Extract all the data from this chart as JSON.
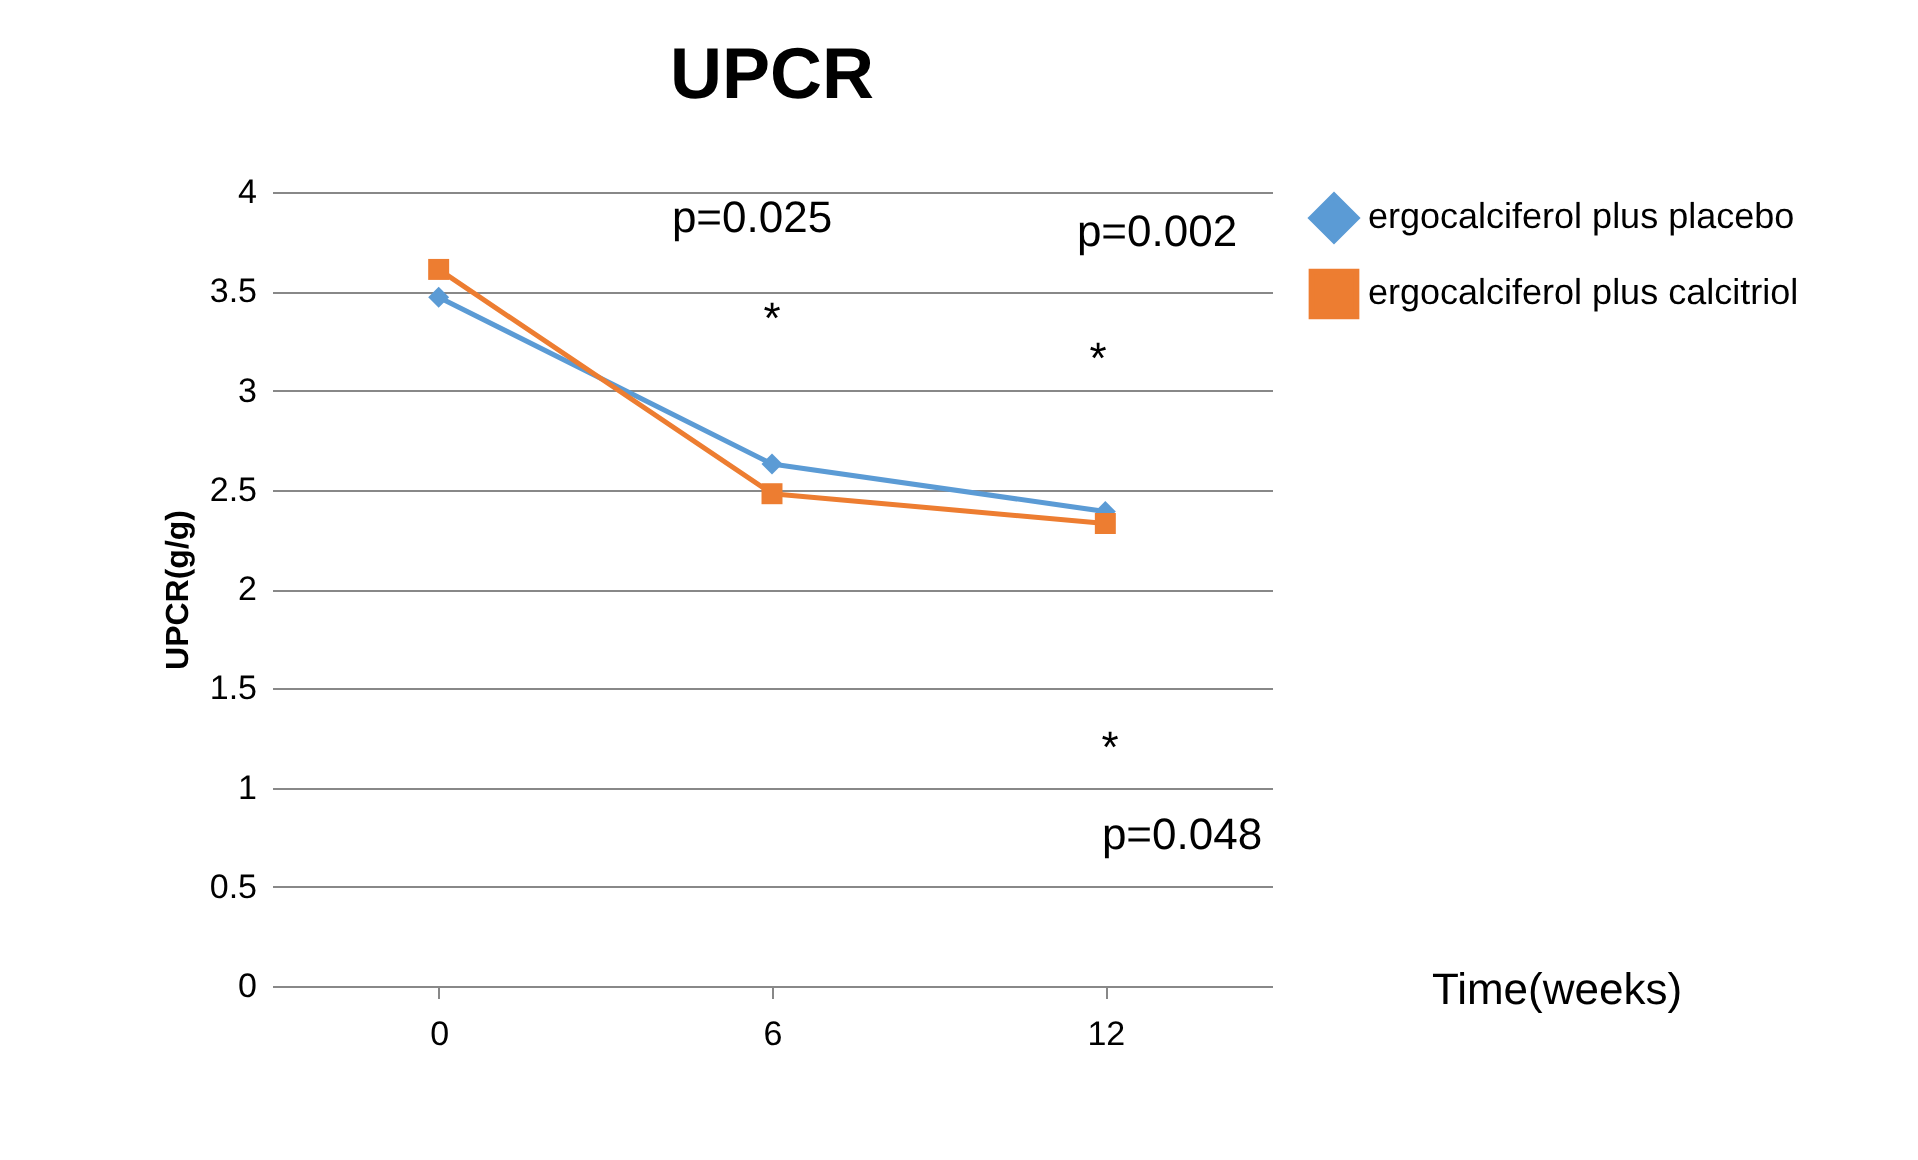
{
  "chart_data": {
    "type": "line",
    "title": "UPCR",
    "ylabel": "UPCR(g/g)",
    "categories": [
      "0",
      "6",
      "12"
    ],
    "series": [
      {
        "name": "ergocalciferol plus placebo",
        "color": "#5b9bd5",
        "values": [
          3.47,
          2.63,
          2.39
        ],
        "marker": "diamond"
      },
      {
        "name": "ergocalciferol plus calcitriol",
        "color": "#ed7d31",
        "values": [
          3.61,
          2.48,
          2.33
        ],
        "marker": "square"
      }
    ],
    "ylim": [
      0,
      4
    ],
    "yticks": [
      0,
      0.5,
      1,
      1.5,
      2,
      2.5,
      3,
      3.5,
      4
    ],
    "grid": "y",
    "legend": "right",
    "annotations": [
      "p=0.025",
      "*",
      "p=0.002",
      "*",
      "*",
      "p=0.048",
      "Time(weeks)"
    ]
  }
}
